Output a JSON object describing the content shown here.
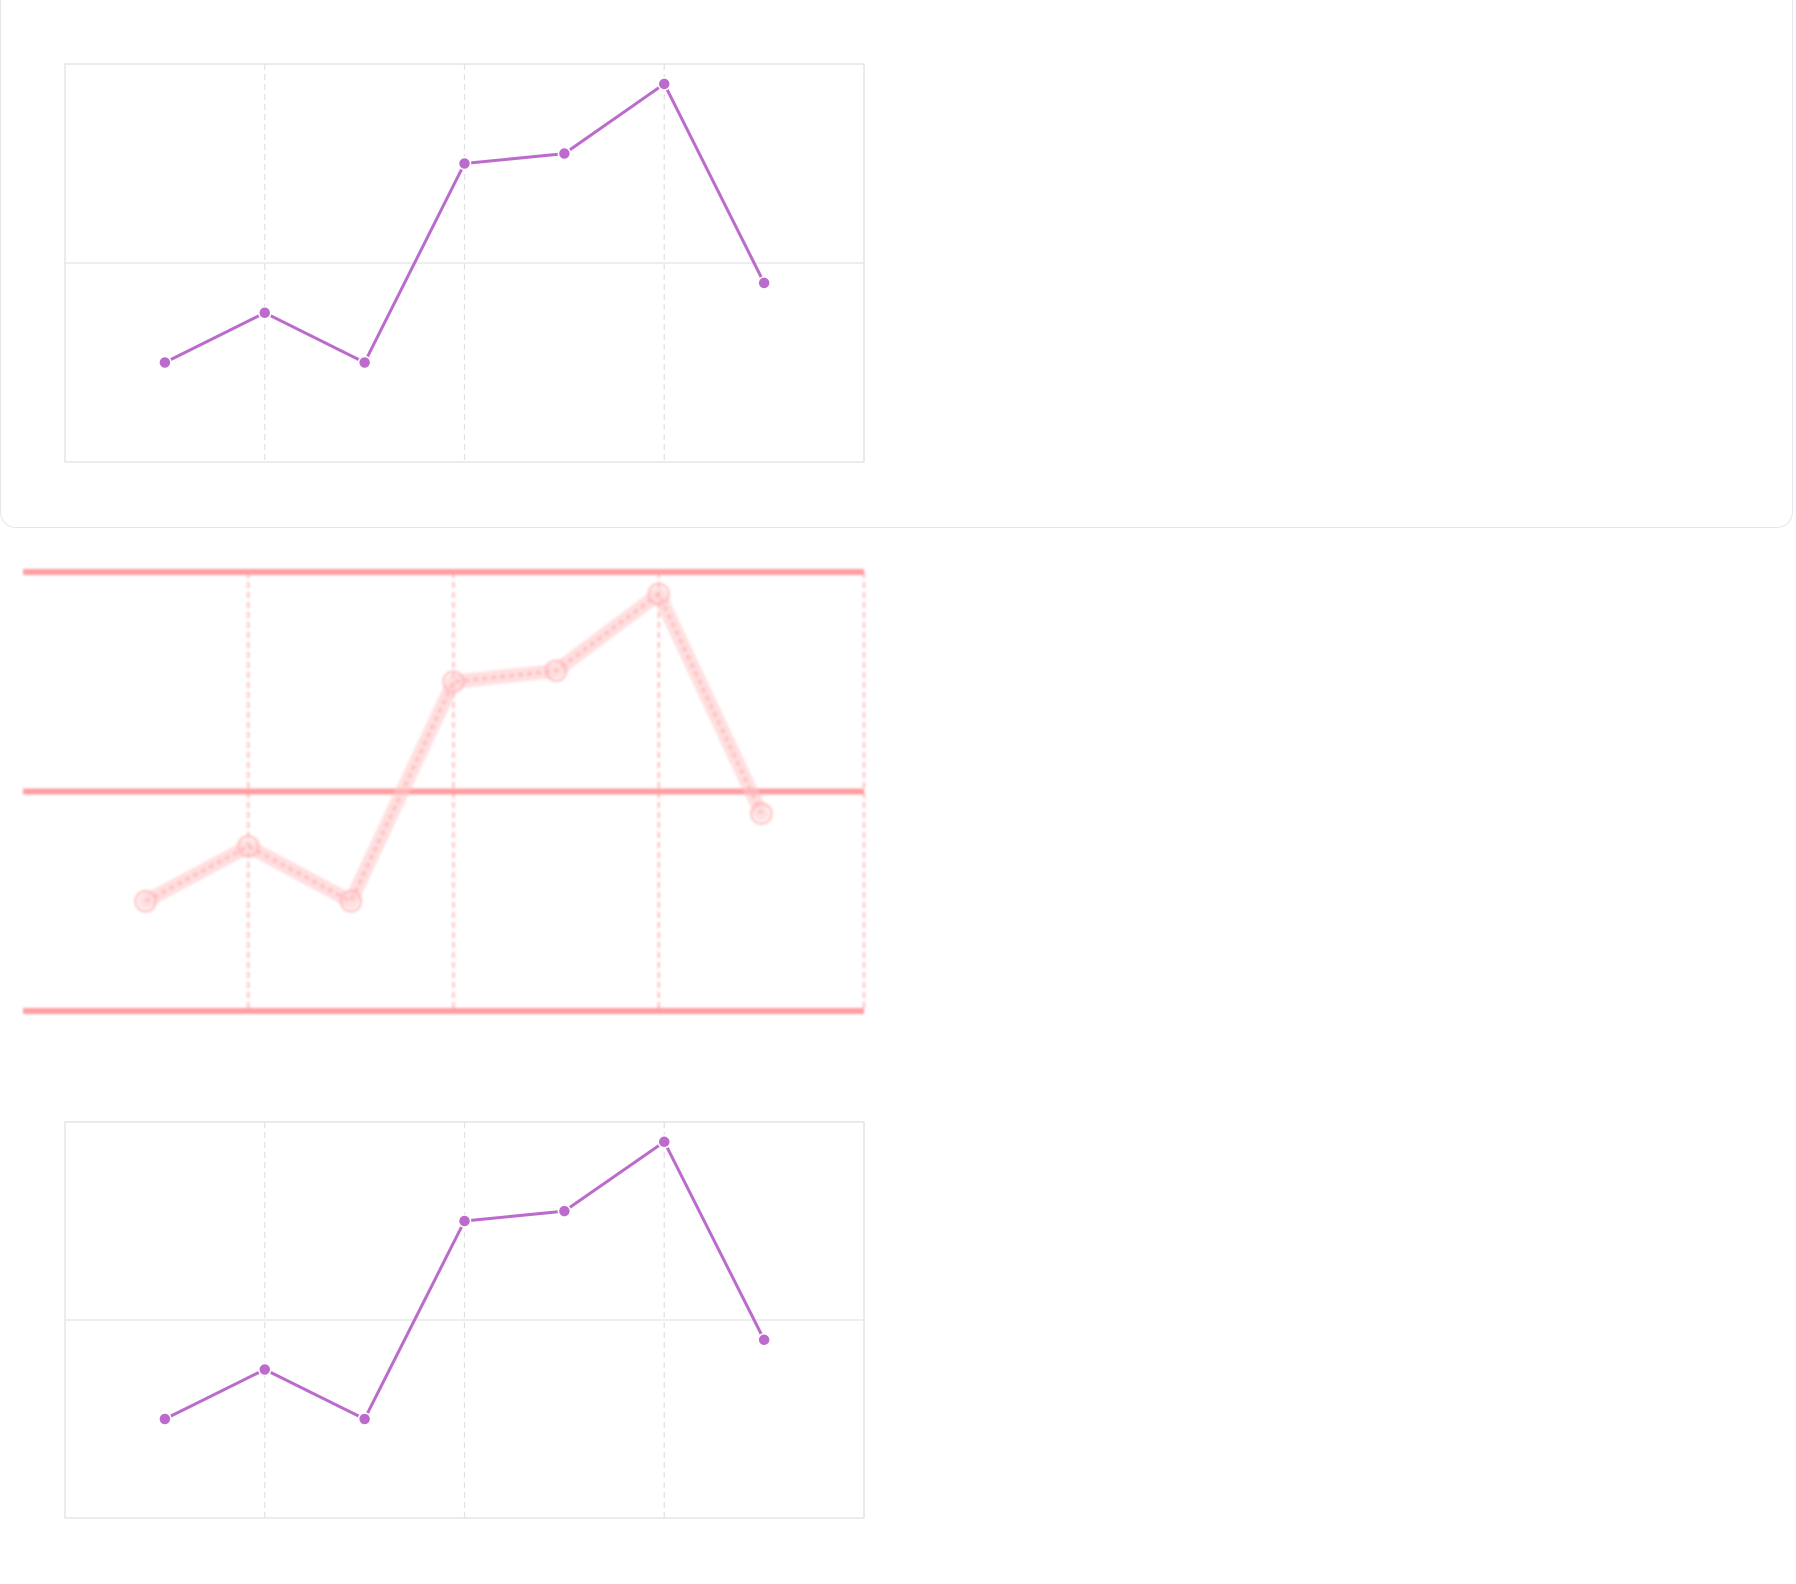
{
  "colors": {
    "series": "#bb6bcb",
    "grid": "#e4e4e8",
    "grid_dash": "#e2e2e6",
    "ghost_axis": "#ff9da0",
    "ghost_series": "#ffc4c6",
    "card_border": "#e6e6ea"
  },
  "chart_data": [
    {
      "type": "line",
      "title": "",
      "xlabel": "",
      "ylabel": "",
      "x": [
        0.5,
        1,
        1.5,
        2,
        2.5,
        3,
        3.5
      ],
      "series": [
        {
          "values": [
            0.5,
            0.75,
            0.5,
            1.5,
            1.55,
            1.9,
            0.9
          ]
        }
      ],
      "xlim": [
        0,
        4
      ],
      "ylim": [
        0,
        2
      ],
      "grid": true,
      "legend": "none"
    },
    {
      "type": "line",
      "title": "",
      "xlabel": "",
      "ylabel": "",
      "x": [
        0.5,
        1,
        1.5,
        2,
        2.5,
        3,
        3.5
      ],
      "series": [
        {
          "values": [
            0.5,
            0.75,
            0.5,
            1.5,
            1.55,
            1.9,
            0.9
          ]
        }
      ],
      "xlim": [
        0,
        4
      ],
      "ylim": [
        0,
        2
      ],
      "grid": true,
      "legend": "none",
      "style": "ghost"
    },
    {
      "type": "line",
      "title": "",
      "xlabel": "",
      "ylabel": "",
      "x": [
        0.5,
        1,
        1.5,
        2,
        2.5,
        3,
        3.5
      ],
      "series": [
        {
          "values": [
            0.5,
            0.75,
            0.5,
            1.5,
            1.55,
            1.9,
            0.9
          ]
        }
      ],
      "xlim": [
        0,
        4
      ],
      "ylim": [
        0,
        2
      ],
      "grid": true,
      "legend": "none"
    }
  ]
}
